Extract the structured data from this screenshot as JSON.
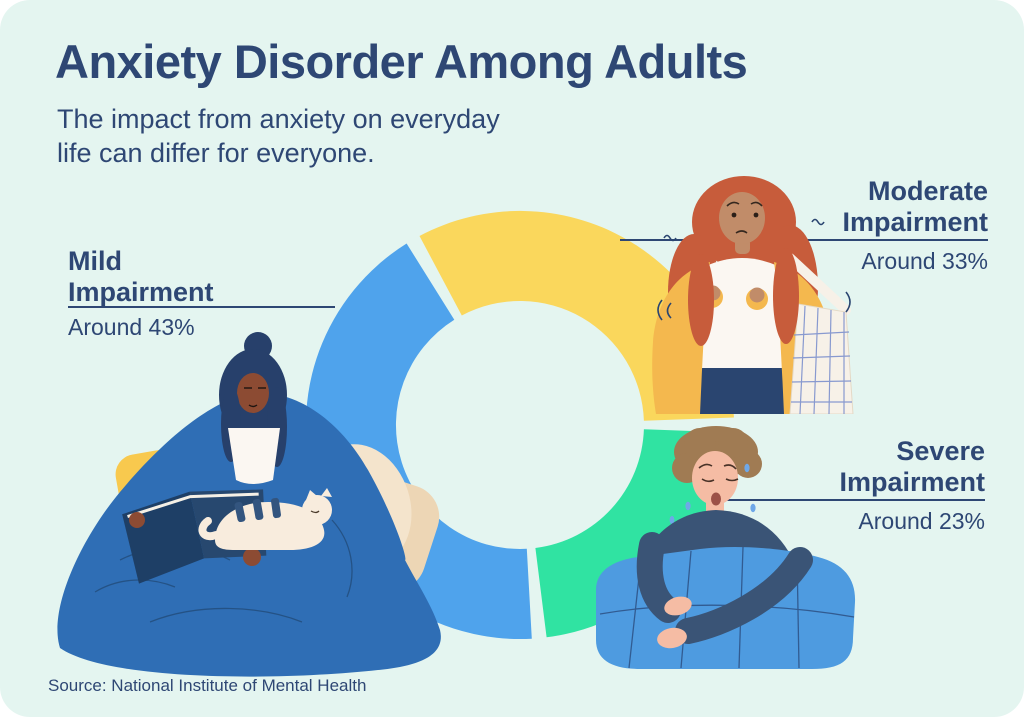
{
  "page": {
    "background_color": "#FFFFFF",
    "card_color": "#E4F5F0",
    "text_color": "#2E4774"
  },
  "header": {
    "title": "Anxiety Disorder Among Adults",
    "subtitle_lines": [
      "The impact from anxiety on everyday",
      "life can differ for everyone."
    ]
  },
  "chart_data": {
    "type": "pie",
    "variant": "donut",
    "title": "Anxiety Disorder Among Adults",
    "categories": [
      "Mild Impairment",
      "Moderate Impairment",
      "Severe Impairment"
    ],
    "values": [
      43,
      33,
      23
    ],
    "value_labels": [
      "Around 43%",
      "Around 33%",
      "Around 23%"
    ],
    "legend_position": "callout-labels-with-leader-lines",
    "segments": [
      {
        "id": "mild",
        "name": "Mild Impairment",
        "approx_percent": 43,
        "value_label": "Around 43%",
        "color": "#4FA3EC"
      },
      {
        "id": "moderate",
        "name": "Moderate Impairment",
        "approx_percent": 33,
        "value_label": "Around 33%",
        "color": "#FAD75C"
      },
      {
        "id": "severe",
        "name": "Severe Impairment",
        "approx_percent": 23,
        "value_label": "Around 23%",
        "color": "#30E3A2"
      }
    ]
  },
  "footer": {
    "source": "Source: National Institute of Mental Health"
  },
  "illustrations": [
    "reading-woman-with-cat-illustration",
    "anxious-woman-with-tote-bag-illustration",
    "worried-person-under-blanket-illustration"
  ]
}
